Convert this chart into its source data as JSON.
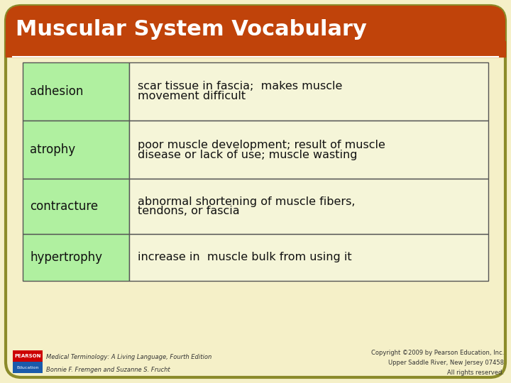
{
  "title": "Muscular System Vocabulary",
  "title_color": "#ffffff",
  "title_bg_color": "#c0430a",
  "background_color": "#f5f0c8",
  "border_color": "#8b8b2a",
  "table_border_color": "#555555",
  "term_bg_color": "#b0f0a0",
  "def_bg_color": "#f5f5d8",
  "rows": [
    {
      "term": "adhesion",
      "definition": "scar tissue in fascia;  makes muscle\nmovement difficult"
    },
    {
      "term": "atrophy",
      "definition": "poor muscle development; result of muscle\ndisease or lack of use; muscle wasting"
    },
    {
      "term": "contracture",
      "definition": "abnormal shortening of muscle fibers,\ntendons, or fascia"
    },
    {
      "term": "hypertrophy",
      "definition": "increase in  muscle bulk from using it"
    }
  ],
  "footer_left_line1": "Medical Terminology: A Living Language, Fourth Edition",
  "footer_left_line2": "Bonnie F. Fremgen and Suzanne S. Frucht",
  "footer_right_line1": "Copyright ©2009 by Pearson Education, Inc.",
  "footer_right_line2": "Upper Saddle River, New Jersey 07458",
  "footer_right_line3": "All rights reserved.",
  "pearson_red_color": "#cc0000",
  "pearson_blue_color": "#1a5aab",
  "figsize": [
    7.2,
    5.4
  ],
  "dpi": 100
}
